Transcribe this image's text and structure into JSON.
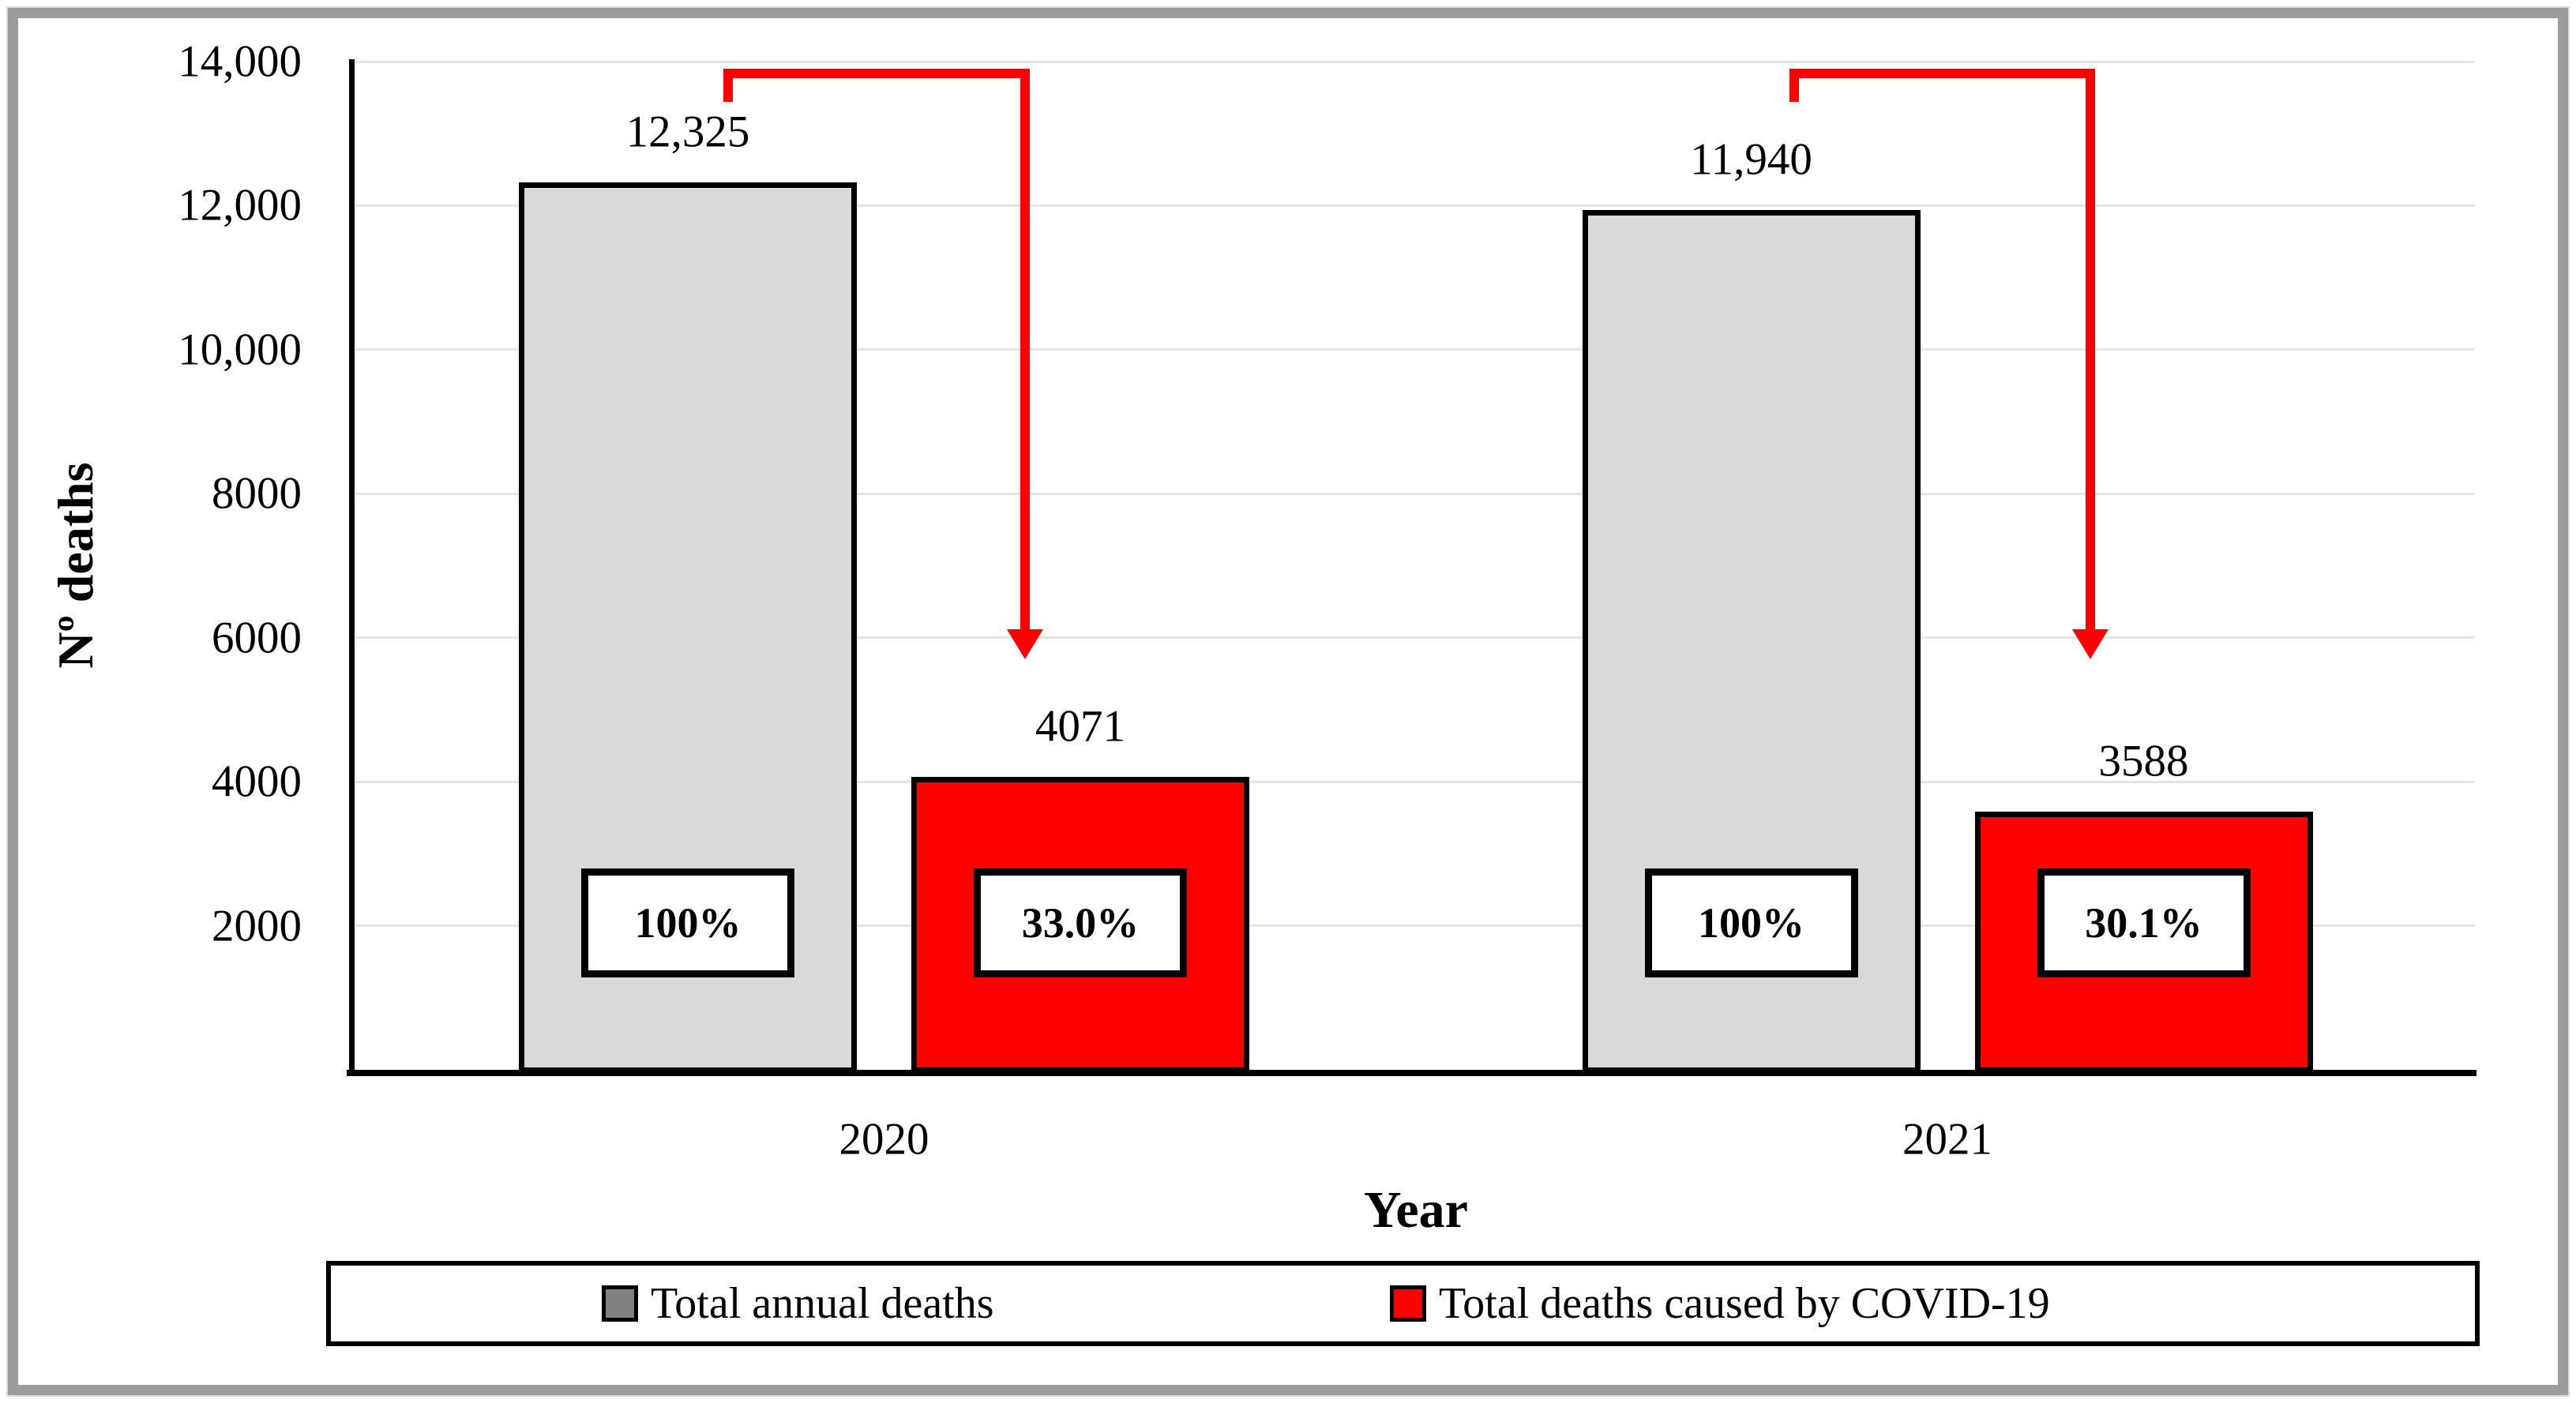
{
  "figure": {
    "y_axis": {
      "title": "Nº deaths",
      "tick_labels": [
        "14,000",
        "12,000",
        "10,000",
        "8000",
        "6000",
        "4000",
        "2000"
      ],
      "tick_values": [
        14000,
        12000,
        10000,
        8000,
        6000,
        4000,
        2000
      ]
    },
    "x_axis": {
      "title": "Year",
      "categories": [
        "2020",
        "2021"
      ]
    },
    "legend": {
      "entries": [
        {
          "label": "Total annual deaths",
          "swatch_color": "#808080"
        },
        {
          "label": "Total deaths caused by COVID-19",
          "swatch_color": "#ff0000"
        }
      ]
    }
  },
  "chart_data": {
    "type": "bar",
    "categories": [
      "2020",
      "2021"
    ],
    "series": [
      {
        "name": "Total annual deaths",
        "values": [
          12325,
          11940
        ],
        "value_labels": [
          "12,325",
          "11,940"
        ],
        "percent_labels": [
          "100%",
          "100%"
        ],
        "fill": "#d9d9d9"
      },
      {
        "name": "Total deaths caused by COVID-19",
        "values": [
          4071,
          3588
        ],
        "value_labels": [
          "4071",
          "3588"
        ],
        "percent_labels": [
          "33.0%",
          "30.1%"
        ],
        "fill": "#ff0000"
      }
    ],
    "xlabel": "Year",
    "ylabel": "Nº deaths",
    "ylim": [
      0,
      14000
    ],
    "ytick_step": 2000,
    "grid": true,
    "legend_position": "bottom",
    "annotations": [
      {
        "type": "elbow-arrow",
        "category": "2020",
        "from_series": "Total annual deaths",
        "to_series": "Total deaths caused by COVID-19",
        "color": "#ff0000"
      },
      {
        "type": "elbow-arrow",
        "category": "2021",
        "from_series": "Total annual deaths",
        "to_series": "Total deaths caused by COVID-19",
        "color": "#ff0000"
      }
    ]
  },
  "colors": {
    "bar_gray": "#d9d9d9",
    "accent_red": "#ff0000",
    "legend_gray": "#808080",
    "grid": "#e4e4e4",
    "axis": "#000000",
    "frame": "#9c9c9c"
  }
}
